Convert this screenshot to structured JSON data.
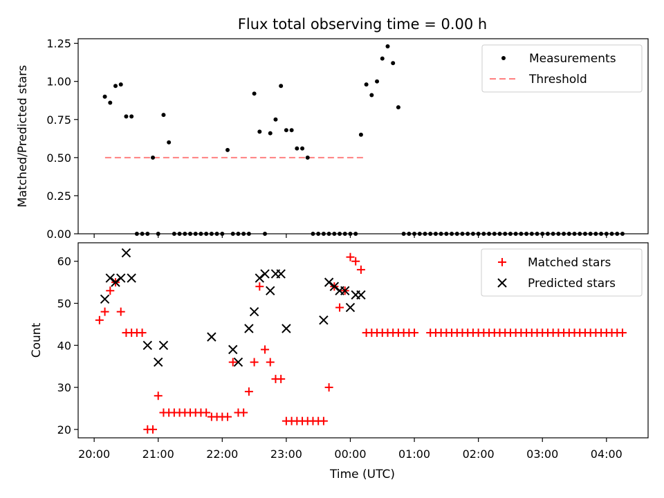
{
  "title": "Flux total observing time = 0.00 h",
  "colors": {
    "measure": "#000000",
    "threshold": "#ff7f7f",
    "matched": "#ff0000",
    "predicted": "#000000",
    "axis": "#000000"
  },
  "chart_data": [
    {
      "type": "scatter",
      "ylabel": "Matched/Predicted stars",
      "ylim": [
        0,
        1.28
      ],
      "yticks": [
        0,
        0.25,
        0.5,
        0.75,
        1.0,
        1.25
      ],
      "ytick_labels": [
        "0.00",
        "0.25",
        "0.50",
        "0.75",
        "1.00",
        "1.25"
      ],
      "legend": {
        "placement": "top-right",
        "items": [
          {
            "label": "Measurements",
            "marker": "dot"
          },
          {
            "label": "Threshold",
            "marker": "dashed-line"
          }
        ]
      },
      "threshold": {
        "value": 0.5,
        "x_start": 20.17,
        "x_end": 24.25
      },
      "series": [
        {
          "marker": "dot",
          "x_times": [
            "20:10",
            "20:15",
            "20:20",
            "20:25",
            "20:30",
            "20:35",
            "20:40",
            "20:45",
            "20:50",
            "20:55",
            "21:00",
            "21:05",
            "21:10",
            "21:15",
            "21:20",
            "21:25",
            "21:30",
            "21:35",
            "21:40",
            "21:45",
            "21:50",
            "21:55",
            "22:00",
            "22:05",
            "22:10",
            "22:15",
            "22:20",
            "22:25",
            "22:30",
            "22:35",
            "22:40",
            "22:45",
            "22:50",
            "22:55",
            "23:00",
            "23:05",
            "23:10",
            "23:15",
            "23:20",
            "23:25",
            "23:30",
            "23:35",
            "23:40",
            "23:45",
            "23:50",
            "23:55",
            "00:00",
            "00:05",
            "00:10",
            "00:15",
            "00:20",
            "00:25",
            "00:30",
            "00:35",
            "00:40",
            "00:45",
            "00:50",
            "00:55",
            "01:00",
            "01:05",
            "01:10",
            "01:15",
            "01:20",
            "01:25",
            "01:30",
            "01:35",
            "01:40",
            "01:45",
            "01:50",
            "01:55",
            "02:00",
            "02:05",
            "02:10",
            "02:15",
            "02:20",
            "02:25",
            "02:30",
            "02:35",
            "02:40",
            "02:45",
            "02:50",
            "02:55",
            "03:00",
            "03:05",
            "03:10",
            "03:15",
            "03:20",
            "03:25",
            "03:30",
            "03:35",
            "03:40",
            "03:45",
            "03:50",
            "03:55",
            "04:00",
            "04:05",
            "04:10",
            "04:15"
          ],
          "y": [
            0.9,
            0.86,
            0.97,
            0.98,
            0.77,
            0.77,
            0,
            0,
            0,
            0.5,
            0,
            0.78,
            0.6,
            0,
            0,
            0,
            0,
            0,
            0,
            0,
            0,
            0,
            0,
            0.55,
            0,
            0,
            0,
            0,
            0.92,
            0.67,
            0,
            0.66,
            0.75,
            0.97,
            0.68,
            0.68,
            0.56,
            0.56,
            0.5,
            0,
            0,
            0,
            0,
            0,
            0,
            0,
            0,
            0,
            0.65,
            0.98,
            0.91,
            1.0,
            1.15,
            1.23,
            1.12,
            0.83,
            0,
            0,
            0,
            0,
            0,
            0,
            0,
            0,
            0,
            0,
            0,
            0,
            0,
            0,
            0,
            0,
            0,
            0,
            0,
            0,
            0,
            0,
            0,
            0,
            0,
            0,
            0,
            0,
            0,
            0,
            0,
            0,
            0,
            0,
            0,
            0,
            0,
            0,
            0,
            0,
            0,
            0
          ]
        }
      ]
    },
    {
      "type": "scatter",
      "xlabel": "Time (UTC)",
      "ylabel": "Count",
      "ylim": [
        18,
        64.4
      ],
      "yticks": [
        20,
        30,
        40,
        50,
        60
      ],
      "ytick_labels": [
        "20",
        "30",
        "40",
        "50",
        "60"
      ],
      "xticks": [
        20,
        21,
        22,
        23,
        24,
        25,
        26,
        27,
        28
      ],
      "xtick_labels": [
        "20:00",
        "21:00",
        "22:00",
        "23:00",
        "00:00",
        "01:00",
        "02:00",
        "03:00",
        "04:00"
      ],
      "legend": {
        "placement": "top-right",
        "items": [
          {
            "label": "Matched stars",
            "marker": "plus"
          },
          {
            "label": "Predicted stars",
            "marker": "x"
          }
        ]
      },
      "series": [
        {
          "marker": "plus",
          "x_times": [
            "20:05",
            "20:10",
            "20:15",
            "20:20",
            "20:25",
            "20:30",
            "20:35",
            "20:40",
            "20:45",
            "20:50",
            "20:55",
            "21:00",
            "21:05",
            "21:10",
            "21:15",
            "21:20",
            "21:25",
            "21:30",
            "21:35",
            "21:40",
            "21:45",
            "21:50",
            "21:55",
            "22:00",
            "22:05",
            "22:10",
            "22:15",
            "22:20",
            "22:25",
            "22:30",
            "22:35",
            "22:40",
            "22:45",
            "22:50",
            "22:55",
            "23:00",
            "23:05",
            "23:10",
            "23:15",
            "23:20",
            "23:25",
            "23:30",
            "23:35",
            "23:40",
            "23:45",
            "23:50",
            "23:55",
            "00:00",
            "00:05",
            "00:10",
            "00:15",
            "00:20",
            "00:25",
            "00:30",
            "00:35",
            "00:40",
            "00:45",
            "00:50",
            "00:55",
            "01:00",
            "01:15",
            "01:20",
            "01:25",
            "01:30",
            "01:35",
            "01:40",
            "01:45",
            "01:50",
            "01:55",
            "02:00",
            "02:05",
            "02:10",
            "02:15",
            "02:20",
            "02:25",
            "02:30",
            "02:35",
            "02:40",
            "02:45",
            "02:50",
            "02:55",
            "03:00",
            "03:05",
            "03:10",
            "03:15",
            "03:20",
            "03:25",
            "03:30",
            "03:35",
            "03:40",
            "03:45",
            "03:50",
            "03:55",
            "04:00",
            "04:05",
            "04:10",
            "04:15"
          ],
          "y": [
            46,
            48,
            53,
            55,
            48,
            43,
            43,
            43,
            43,
            20,
            20,
            28,
            24,
            24,
            24,
            24,
            24,
            24,
            24,
            24,
            24,
            23,
            23,
            23,
            23,
            36,
            24,
            24,
            29,
            36,
            54,
            39,
            36,
            32,
            32,
            22,
            22,
            22,
            22,
            22,
            22,
            22,
            22,
            30,
            54,
            49,
            53,
            61,
            60,
            58,
            43,
            43,
            43,
            43,
            43,
            43,
            43,
            43,
            43,
            43,
            43,
            43,
            43,
            43,
            43,
            43,
            43,
            43,
            43,
            43,
            43,
            43,
            43,
            43,
            43,
            43,
            43,
            43,
            43,
            43,
            43,
            43,
            43,
            43,
            43,
            43,
            43,
            43,
            43,
            43,
            43,
            43,
            43,
            43,
            43,
            43,
            43
          ]
        },
        {
          "marker": "x",
          "x_times": [
            "20:10",
            "20:15",
            "20:20",
            "20:25",
            "20:30",
            "20:35",
            "20:50",
            "21:00",
            "21:05",
            "21:50",
            "22:10",
            "22:15",
            "22:25",
            "22:30",
            "22:35",
            "22:40",
            "22:45",
            "22:50",
            "22:55",
            "23:00",
            "23:35",
            "23:40",
            "23:45",
            "23:50",
            "23:55",
            "00:00",
            "00:05",
            "00:10"
          ],
          "y": [
            51,
            56,
            55,
            56,
            62,
            56,
            40,
            36,
            40,
            42,
            39,
            36,
            44,
            48,
            56,
            57,
            53,
            57,
            57,
            44,
            46,
            55,
            54,
            53,
            53,
            49,
            52,
            52
          ]
        }
      ]
    }
  ]
}
